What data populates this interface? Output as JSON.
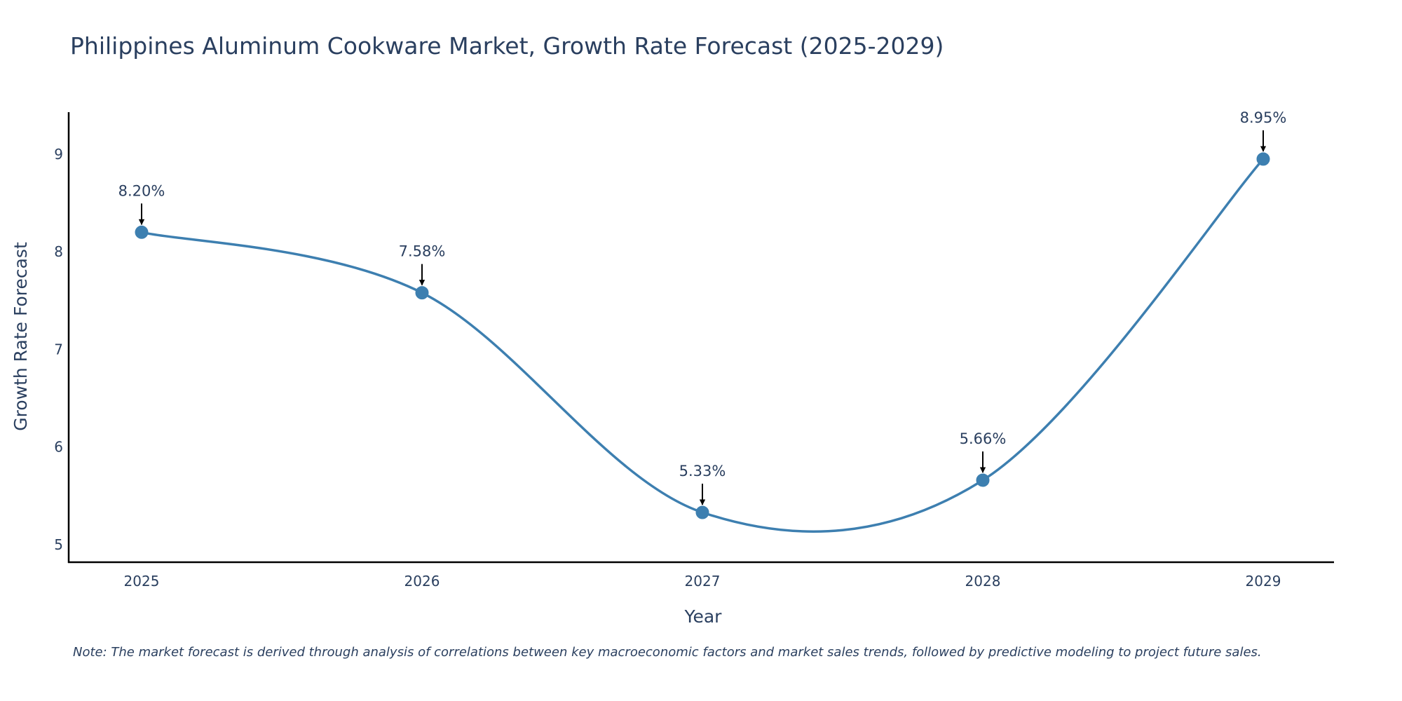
{
  "chart_data": {
    "type": "line",
    "title": "Philippines Aluminum Cookware Market, Growth Rate Forecast (2025-2029)",
    "xlabel": "Year",
    "ylabel": "Growth Rate Forecast",
    "categories": [
      "2025",
      "2026",
      "2027",
      "2028",
      "2029"
    ],
    "values": [
      8.2,
      7.58,
      5.33,
      5.66,
      8.95
    ],
    "data_labels": [
      "8.20%",
      "7.58%",
      "5.33%",
      "5.66%",
      "8.95%"
    ],
    "y_ticks": [
      "5",
      "6",
      "7",
      "8",
      "9"
    ],
    "ylim": [
      4.82,
      9.43
    ],
    "grid": false,
    "line_color": "#3d7fb0",
    "marker_color": "#3d7fb0"
  },
  "note": "Note: The market forecast is derived through analysis of correlations between key macroeconomic factors and market sales trends, followed by predictive modeling to project future sales."
}
